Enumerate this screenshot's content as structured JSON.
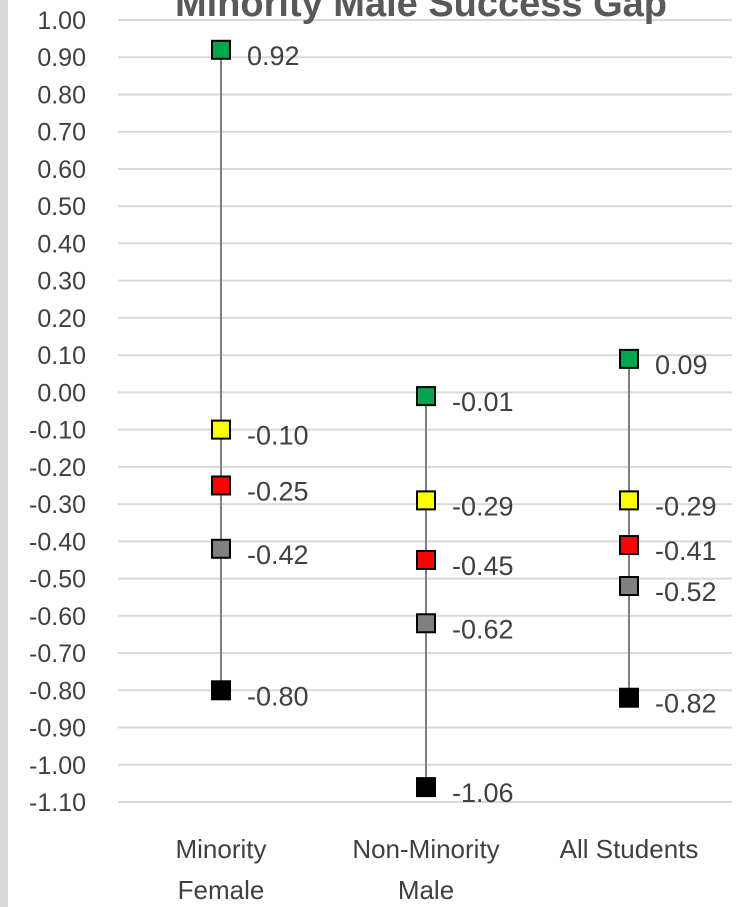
{
  "chart_data": {
    "type": "scatter",
    "title": "Minority Male Success Gap",
    "categories": [
      [
        "Minority",
        "Female"
      ],
      [
        "Non-Minority",
        "Male"
      ],
      [
        "All Students"
      ]
    ],
    "ylim": [
      -1.1,
      1.0
    ],
    "ytick_step": 0.1,
    "grid": true,
    "legend": "none",
    "series": [
      {
        "color": "#00a550",
        "values": [
          0.92,
          -0.01,
          0.09
        ]
      },
      {
        "color": "#ffff00",
        "values": [
          -0.1,
          -0.29,
          -0.29
        ]
      },
      {
        "color": "#ff0000",
        "values": [
          -0.25,
          -0.45,
          -0.41
        ]
      },
      {
        "color": "#808080",
        "values": [
          -0.42,
          -0.62,
          -0.52
        ]
      },
      {
        "color": "#000000",
        "values": [
          -0.8,
          -1.06,
          -0.82
        ]
      }
    ],
    "data_labels": [
      [
        "0.92",
        "-0.01",
        "0.09"
      ],
      [
        "-0.10",
        "-0.29",
        "-0.29"
      ],
      [
        "-0.25",
        "-0.45",
        "-0.41"
      ],
      [
        "-0.42",
        "-0.62",
        "-0.52"
      ],
      [
        "-0.80",
        "-1.06",
        "-0.82"
      ]
    ],
    "colors": {
      "gridline": "#d9d9d9",
      "range_line": "#7f7f7f",
      "text": "#404040"
    }
  }
}
